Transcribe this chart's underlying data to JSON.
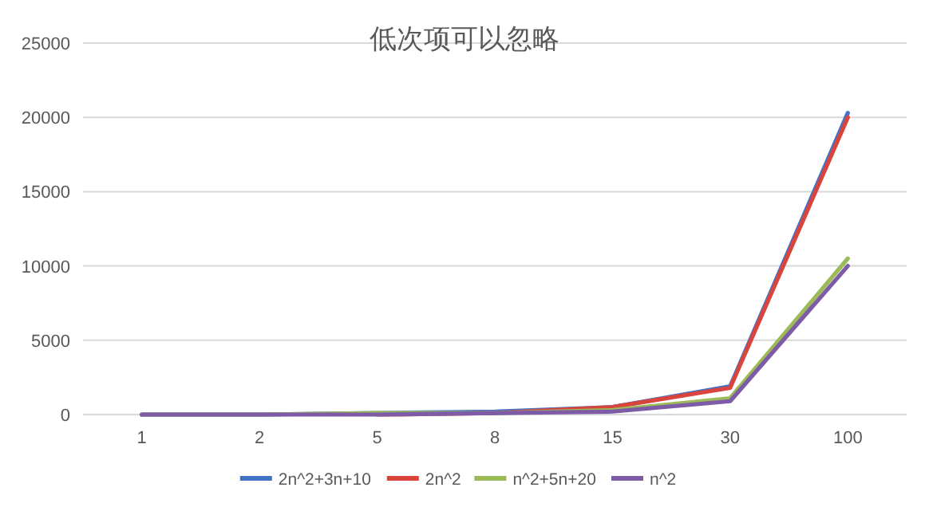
{
  "chart_data": {
    "type": "line",
    "title": "低次项可以忽略",
    "categories": [
      "1",
      "2",
      "5",
      "8",
      "15",
      "30",
      "100"
    ],
    "series": [
      {
        "name": "2n^2+3n+10",
        "color": "#4472c4",
        "values": [
          0,
          0,
          100,
          200,
          500,
          1900,
          20300
        ]
      },
      {
        "name": "2n^2",
        "color": "#d9453c",
        "values": [
          null,
          null,
          0,
          100,
          500,
          1800,
          20000
        ]
      },
      {
        "name": "n^2+5n+20",
        "color": "#9bbb59",
        "values": [
          0,
          0,
          100,
          100,
          300,
          1100,
          10500
        ]
      },
      {
        "name": "n^2",
        "color": "#7d5ba6",
        "values": [
          0,
          0,
          0,
          100,
          200,
          900,
          10000
        ]
      }
    ],
    "ylim": [
      0,
      25000
    ],
    "yticks": [
      0,
      5000,
      10000,
      15000,
      20000,
      25000
    ],
    "grid": "y",
    "legend": "bottom",
    "marker": "none",
    "line_style": "solid"
  }
}
